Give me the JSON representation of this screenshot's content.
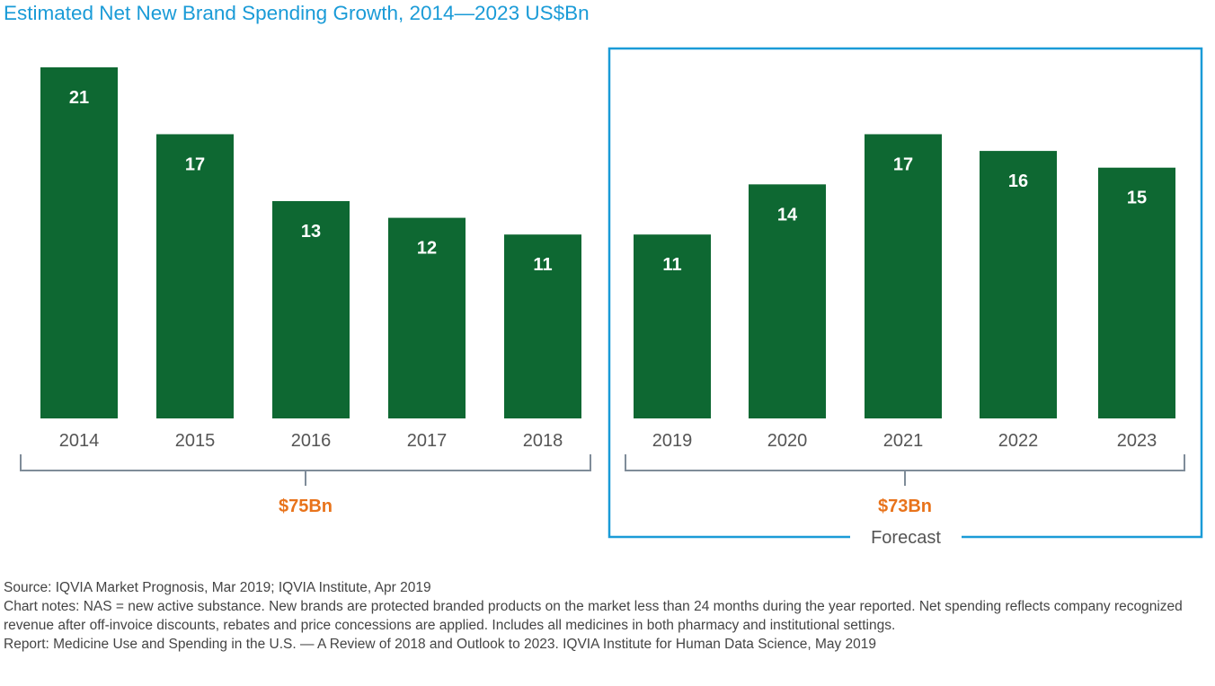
{
  "title": "Estimated Net New Brand Spending Growth, 2014—2023 US$Bn",
  "chart_data": {
    "type": "bar",
    "title": "Estimated Net New Brand Spending Growth, 2014—2023 US$Bn",
    "categories": [
      "2014",
      "2015",
      "2016",
      "2017",
      "2018",
      "2019",
      "2020",
      "2021",
      "2022",
      "2023"
    ],
    "values": [
      21,
      17,
      13,
      12,
      11,
      11,
      14,
      17,
      16,
      15
    ],
    "value_labels": [
      "21",
      "17",
      "13",
      "12",
      "11",
      "11",
      "14",
      "17",
      "16",
      "15"
    ],
    "ylim": [
      0,
      21
    ],
    "xlabel": "",
    "ylabel": "",
    "grid": false,
    "groups": [
      {
        "label": "$75Bn",
        "from": "2014",
        "to": "2018",
        "forecast": false
      },
      {
        "label": "$73Bn",
        "from": "2019",
        "to": "2023",
        "forecast": true
      }
    ],
    "forecast_label": "Forecast",
    "colors": {
      "bar": "#0e6832",
      "title": "#1a9bd7",
      "forecast_box": "#1a9bd7",
      "group_total": "#e8731b",
      "bracket": "#7f8c99"
    }
  },
  "notes": {
    "source": "Source: IQVIA Market Prognosis, Mar 2019; IQVIA Institute, Apr 2019",
    "chart_notes": "Chart notes: NAS = new active substance. New brands are protected branded products on the market less than 24 months during the year reported. Net spending reflects company recognized revenue after off-invoice discounts, rebates and price concessions are applied. Includes all medicines in both pharmacy and institutional settings.",
    "report": "Report: Medicine Use and Spending in the U.S. — A Review of 2018 and Outlook to 2023. IQVIA Institute for Human Data Science, May 2019"
  }
}
